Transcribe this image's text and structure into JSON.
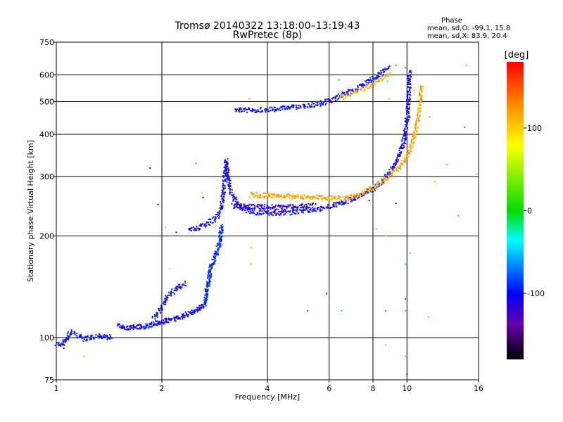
{
  "chart_data": {
    "type": "scatter",
    "title": "Tromsø 20140322 13:18:00–13:19:43",
    "subtitle": "RwPretec (8p)",
    "xlabel": "Frequency [MHz]",
    "ylabel": "Stationary phase Virtual Height [km]",
    "x_scale": "log",
    "y_scale": "log",
    "xlim": [
      1,
      16
    ],
    "ylim": [
      75,
      750
    ],
    "x_ticks": [
      1,
      2,
      4,
      6,
      8,
      10,
      16
    ],
    "x_tick_labels": [
      "1",
      "2",
      "4",
      "6",
      "8",
      "10",
      "16"
    ],
    "y_ticks": [
      75,
      100,
      200,
      300,
      400,
      500,
      600,
      750
    ],
    "y_tick_labels": [
      "75",
      "100",
      "200",
      "300",
      "400",
      "500",
      "600",
      "750"
    ],
    "grid": true,
    "phase_stats": {
      "heading": "Phase",
      "o_line": "mean, sd,O: -99.1, 15.8",
      "x_line": "mean, sd,X:  83.9, 20.4"
    },
    "colorbar": {
      "label": "[deg]",
      "range": [
        -180,
        180
      ],
      "ticks": [
        100,
        0,
        -100
      ],
      "tick_labels": [
        "100",
        "0",
        "-100"
      ]
    },
    "traces": [
      {
        "points": [
          [
            1.0,
            96
          ],
          [
            1.04,
            95
          ],
          [
            1.1,
            104
          ],
          [
            1.2,
            99
          ],
          [
            1.25,
            100
          ],
          [
            1.32,
            101
          ],
          [
            1.4,
            100
          ],
          [
            1.45,
            101
          ]
        ],
        "phase": -100,
        "density": 3
      },
      {
        "points": [
          [
            1.5,
            108
          ],
          [
            1.6,
            107
          ],
          [
            1.8,
            108
          ],
          [
            2.0,
            111
          ],
          [
            2.2,
            114
          ],
          [
            2.5,
            120
          ],
          [
            2.65,
            126
          ]
        ],
        "phase": -105,
        "density": 4
      },
      {
        "points": [
          [
            1.9,
            115
          ],
          [
            2.0,
            122
          ],
          [
            2.05,
            130
          ],
          [
            2.2,
            140
          ],
          [
            2.35,
            145
          ]
        ],
        "phase": -100,
        "density": 3
      },
      {
        "points": [
          [
            2.65,
            126
          ],
          [
            2.7,
            140
          ],
          [
            2.75,
            160
          ],
          [
            2.85,
            175
          ],
          [
            2.92,
            190
          ],
          [
            2.97,
            215
          ]
        ],
        "phase": -90,
        "density": 4
      },
      {
        "points": [
          [
            2.4,
            208
          ],
          [
            2.55,
            212
          ],
          [
            2.7,
            218
          ],
          [
            2.85,
            225
          ],
          [
            2.95,
            240
          ],
          [
            3.0,
            270
          ],
          [
            3.02,
            310
          ],
          [
            3.05,
            335
          ]
        ],
        "phase": -105,
        "density": 3
      },
      {
        "points": [
          [
            3.05,
            335
          ],
          [
            3.08,
            300
          ],
          [
            3.15,
            270
          ],
          [
            3.3,
            245
          ],
          [
            3.6,
            235
          ],
          [
            4.0,
            234
          ],
          [
            4.5,
            234
          ],
          [
            5.0,
            237
          ],
          [
            5.5,
            240
          ],
          [
            6.0,
            244
          ],
          [
            6.5,
            250
          ],
          [
            7.0,
            258
          ],
          [
            7.5,
            266
          ],
          [
            8.0,
            276
          ],
          [
            8.5,
            290
          ],
          [
            9.0,
            310
          ],
          [
            9.5,
            345
          ],
          [
            9.8,
            380
          ],
          [
            10.0,
            440
          ],
          [
            10.1,
            500
          ],
          [
            10.15,
            560
          ],
          [
            10.2,
            600
          ],
          [
            10.25,
            620
          ]
        ],
        "phase": -105,
        "density": 3
      },
      {
        "points": [
          [
            3.2,
            245
          ],
          [
            3.5,
            245
          ],
          [
            4.0,
            243
          ],
          [
            4.5,
            243
          ],
          [
            5.0,
            245
          ],
          [
            5.5,
            248
          ]
        ],
        "phase": -115,
        "density": 3
      },
      {
        "points": [
          [
            3.6,
            265
          ],
          [
            4.0,
            263
          ],
          [
            4.5,
            262
          ],
          [
            5.0,
            261
          ],
          [
            5.5,
            260
          ],
          [
            6.0,
            259
          ],
          [
            6.5,
            259
          ],
          [
            7.0,
            262
          ],
          [
            7.5,
            268
          ],
          [
            8.0,
            278
          ],
          [
            8.5,
            290
          ],
          [
            9.0,
            303
          ],
          [
            9.5,
            320
          ],
          [
            10.0,
            345
          ],
          [
            10.3,
            370
          ],
          [
            10.6,
            410
          ],
          [
            10.8,
            460
          ],
          [
            10.9,
            510
          ],
          [
            11.0,
            560
          ]
        ],
        "phase": 115,
        "density": 3
      },
      {
        "points": [
          [
            3.25,
            475
          ],
          [
            3.6,
            470
          ],
          [
            4.0,
            474
          ],
          [
            4.5,
            478
          ],
          [
            5.0,
            483
          ],
          [
            5.5,
            490
          ],
          [
            6.0,
            502
          ],
          [
            6.5,
            520
          ],
          [
            7.0,
            540
          ],
          [
            7.5,
            560
          ],
          [
            8.0,
            585
          ],
          [
            8.5,
            610
          ],
          [
            8.9,
            635
          ]
        ],
        "phase": -100,
        "density": 3
      },
      {
        "points": [
          [
            6.5,
            515
          ],
          [
            7.0,
            530
          ],
          [
            7.5,
            545
          ],
          [
            8.0,
            565
          ],
          [
            8.5,
            585
          ],
          [
            9.0,
            610
          ]
        ],
        "phase": 115,
        "density": 2
      }
    ],
    "noise_points": [
      [
        1.05,
        93,
        -110
      ],
      [
        1.2,
        88,
        110
      ],
      [
        1.28,
        101,
        40
      ],
      [
        1.85,
        318,
        -120
      ],
      [
        1.95,
        248,
        -100
      ],
      [
        2.05,
        212,
        110
      ],
      [
        2.1,
        160,
        60
      ],
      [
        2.2,
        205,
        -100
      ],
      [
        2.5,
        328,
        -10
      ],
      [
        2.6,
        268,
        110
      ],
      [
        2.62,
        260,
        -110
      ],
      [
        3.6,
        185,
        120
      ],
      [
        3.6,
        165,
        120
      ],
      [
        3.55,
        510,
        120
      ],
      [
        4.3,
        260,
        110
      ],
      [
        5.2,
        120,
        150
      ],
      [
        5.9,
        135,
        -120
      ],
      [
        6.4,
        580,
        10
      ],
      [
        6.5,
        120,
        -20
      ],
      [
        7.8,
        255,
        -120
      ],
      [
        8.2,
        210,
        120
      ],
      [
        8.7,
        120,
        160
      ],
      [
        8.7,
        95,
        110
      ],
      [
        8.7,
        200,
        40
      ],
      [
        8.8,
        575,
        -40
      ],
      [
        8.9,
        510,
        110
      ],
      [
        9.3,
        640,
        150
      ],
      [
        9.9,
        630,
        160
      ],
      [
        9.9,
        165,
        -20
      ],
      [
        9.9,
        120,
        10
      ],
      [
        9.9,
        88,
        -20
      ],
      [
        9.9,
        130,
        -140
      ],
      [
        10.0,
        78,
        -120
      ],
      [
        10.2,
        450,
        -120
      ],
      [
        10.2,
        178,
        -20
      ],
      [
        10.5,
        540,
        110
      ],
      [
        11.6,
        450,
        130
      ],
      [
        11.5,
        115,
        120
      ],
      [
        13.0,
        325,
        -20
      ],
      [
        12.0,
        290,
        110
      ],
      [
        14.8,
        640,
        -20
      ],
      [
        14.6,
        420,
        160
      ],
      [
        15.8,
        305,
        120
      ],
      [
        14.0,
        230,
        10
      ],
      [
        9.3,
        250,
        -100
      ]
    ]
  }
}
